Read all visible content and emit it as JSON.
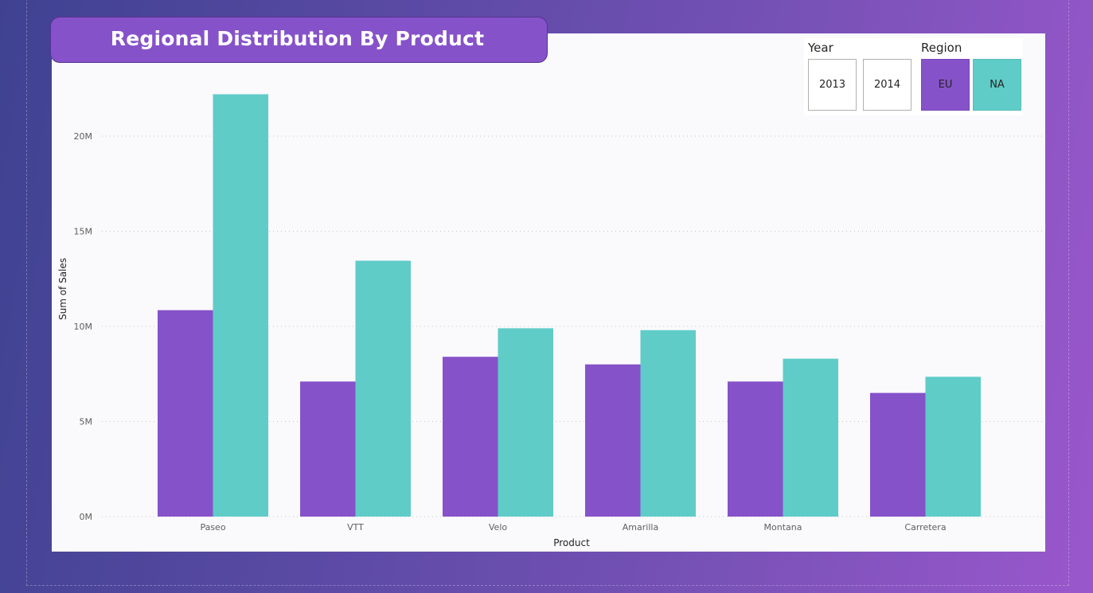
{
  "report": {
    "title": "Regional Distribution By Product"
  },
  "slicers": {
    "year": {
      "label": "Year",
      "options": [
        "2013",
        "2014"
      ]
    },
    "region": {
      "label": "Region",
      "options": [
        "EU",
        "NA"
      ]
    }
  },
  "colors": {
    "eu": "#8652c9",
    "na": "#5fccc8"
  },
  "chart_data": {
    "type": "bar",
    "categories": [
      "Paseo",
      "VTT",
      "Velo",
      "Amarilla",
      "Montana",
      "Carretera"
    ],
    "series": [
      {
        "name": "EU",
        "values": [
          10.85,
          7.1,
          8.4,
          8.0,
          7.1,
          6.5
        ]
      },
      {
        "name": "NA",
        "values": [
          22.2,
          13.45,
          9.9,
          9.8,
          8.3,
          7.35
        ]
      }
    ],
    "yunit": "M",
    "yticks": [
      0,
      5,
      10,
      15,
      20
    ],
    "ytick_labels": [
      "0M",
      "5M",
      "10M",
      "15M",
      "20M"
    ],
    "ylim": [
      0,
      23
    ],
    "xlabel": "Product",
    "ylabel": "Sum of Sales",
    "grid": true,
    "grid_style": "dotted"
  }
}
